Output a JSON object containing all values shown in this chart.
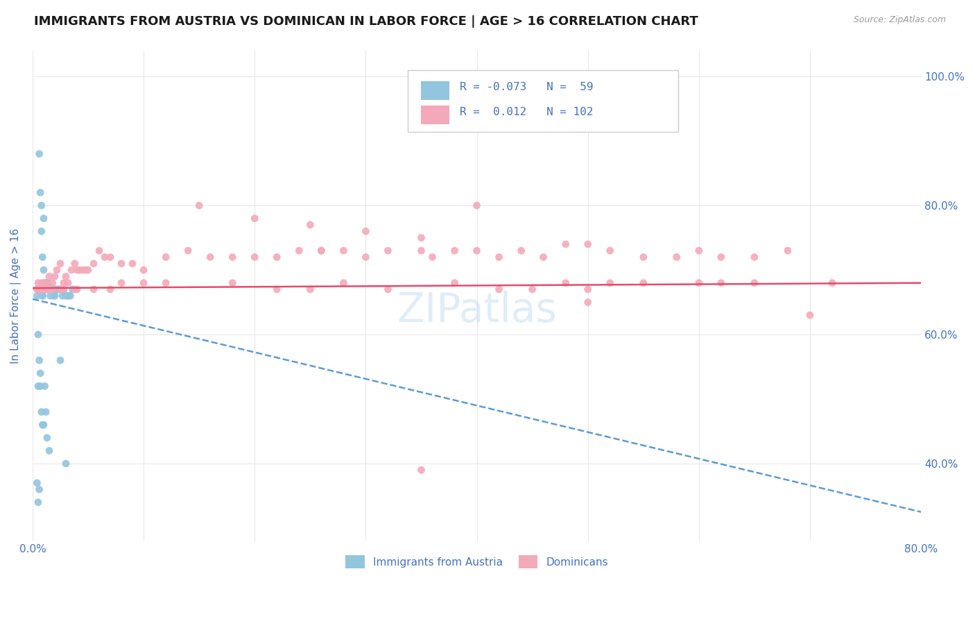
{
  "title": "IMMIGRANTS FROM AUSTRIA VS DOMINICAN IN LABOR FORCE | AGE > 16 CORRELATION CHART",
  "source": "Source: ZipAtlas.com",
  "ylabel": "In Labor Force | Age > 16",
  "xlim": [
    0.0,
    0.8
  ],
  "ylim": [
    0.28,
    1.04
  ],
  "xtick_vals": [
    0.0,
    0.1,
    0.2,
    0.3,
    0.4,
    0.5,
    0.6,
    0.7,
    0.8
  ],
  "xtick_labels": [
    "0.0%",
    "",
    "",
    "",
    "",
    "",
    "",
    "",
    "80.0%"
  ],
  "ytick_vals": [
    0.4,
    0.6,
    0.8,
    1.0
  ],
  "ytick_labels": [
    "40.0%",
    "60.0%",
    "80.0%",
    "100.0%"
  ],
  "legend_r1": "-0.073",
  "legend_n1": "59",
  "legend_r2": "0.012",
  "legend_n2": "102",
  "austria_color": "#92C5DE",
  "dominican_color": "#F4A9B8",
  "austria_trend_color": "#5B9BD5",
  "dominican_trend_color": "#E8496A",
  "watermark": "ZIPatlas",
  "austria_trend_x0": 0.0,
  "austria_trend_y0": 0.655,
  "austria_trend_x1": 0.8,
  "austria_trend_y1": 0.325,
  "dominican_trend_x0": 0.0,
  "dominican_trend_y0": 0.672,
  "dominican_trend_x1": 0.8,
  "dominican_trend_y1": 0.68,
  "austria_x": [
    0.004,
    0.005,
    0.006,
    0.007,
    0.008,
    0.009,
    0.01,
    0.01,
    0.011,
    0.012,
    0.013,
    0.014,
    0.015,
    0.016,
    0.017,
    0.018,
    0.019,
    0.02,
    0.021,
    0.022,
    0.023,
    0.024,
    0.025,
    0.026,
    0.027,
    0.028,
    0.03,
    0.032,
    0.034,
    0.036,
    0.005,
    0.006,
    0.007,
    0.008,
    0.009,
    0.01,
    0.011,
    0.012,
    0.013,
    0.015,
    0.006,
    0.007,
    0.008,
    0.009,
    0.01,
    0.011,
    0.012,
    0.013,
    0.014,
    0.016,
    0.018,
    0.02,
    0.004,
    0.005,
    0.006,
    0.007,
    0.009,
    0.03,
    0.025
  ],
  "austria_y": [
    0.66,
    0.52,
    0.67,
    0.67,
    0.8,
    0.66,
    0.67,
    0.78,
    0.67,
    0.67,
    0.67,
    0.67,
    0.67,
    0.66,
    0.67,
    0.67,
    0.66,
    0.66,
    0.67,
    0.67,
    0.67,
    0.67,
    0.67,
    0.67,
    0.66,
    0.67,
    0.66,
    0.66,
    0.66,
    0.67,
    0.6,
    0.56,
    0.52,
    0.48,
    0.46,
    0.46,
    0.52,
    0.48,
    0.44,
    0.42,
    0.88,
    0.82,
    0.76,
    0.72,
    0.7,
    0.68,
    0.68,
    0.68,
    0.68,
    0.67,
    0.67,
    0.67,
    0.37,
    0.34,
    0.36,
    0.54,
    0.66,
    0.4,
    0.56
  ],
  "dominican_x": [
    0.005,
    0.008,
    0.01,
    0.012,
    0.015,
    0.018,
    0.02,
    0.022,
    0.025,
    0.028,
    0.03,
    0.032,
    0.035,
    0.038,
    0.04,
    0.042,
    0.045,
    0.048,
    0.05,
    0.055,
    0.06,
    0.065,
    0.07,
    0.08,
    0.09,
    0.1,
    0.12,
    0.14,
    0.16,
    0.18,
    0.2,
    0.22,
    0.24,
    0.26,
    0.28,
    0.3,
    0.32,
    0.35,
    0.38,
    0.4,
    0.42,
    0.44,
    0.46,
    0.48,
    0.5,
    0.52,
    0.55,
    0.58,
    0.6,
    0.62,
    0.65,
    0.68,
    0.7,
    0.5,
    0.4,
    0.35,
    0.3,
    0.25,
    0.2,
    0.15,
    0.1,
    0.08,
    0.055,
    0.038,
    0.028,
    0.018,
    0.012,
    0.008,
    0.006,
    0.6,
    0.5,
    0.45,
    0.55,
    0.65,
    0.48,
    0.38,
    0.28,
    0.18,
    0.12,
    0.07,
    0.04,
    0.025,
    0.015,
    0.009,
    0.007,
    0.005,
    0.62,
    0.52,
    0.42,
    0.32,
    0.22,
    0.72,
    0.35,
    0.25,
    0.016,
    0.013,
    0.01,
    0.008,
    0.006,
    0.004,
    0.26,
    0.36
  ],
  "dominican_y": [
    0.68,
    0.68,
    0.68,
    0.68,
    0.69,
    0.68,
    0.69,
    0.7,
    0.71,
    0.68,
    0.69,
    0.68,
    0.7,
    0.71,
    0.7,
    0.7,
    0.7,
    0.7,
    0.7,
    0.71,
    0.73,
    0.72,
    0.72,
    0.71,
    0.71,
    0.7,
    0.72,
    0.73,
    0.72,
    0.72,
    0.72,
    0.72,
    0.73,
    0.73,
    0.73,
    0.72,
    0.73,
    0.73,
    0.73,
    0.73,
    0.72,
    0.73,
    0.72,
    0.74,
    0.74,
    0.73,
    0.72,
    0.72,
    0.73,
    0.72,
    0.72,
    0.73,
    0.63,
    0.65,
    0.8,
    0.75,
    0.76,
    0.77,
    0.78,
    0.8,
    0.68,
    0.68,
    0.67,
    0.67,
    0.67,
    0.67,
    0.67,
    0.67,
    0.67,
    0.68,
    0.67,
    0.67,
    0.68,
    0.68,
    0.68,
    0.68,
    0.68,
    0.68,
    0.68,
    0.67,
    0.67,
    0.67,
    0.67,
    0.67,
    0.67,
    0.67,
    0.68,
    0.68,
    0.67,
    0.67,
    0.67,
    0.68,
    0.39,
    0.67,
    0.67,
    0.67,
    0.67,
    0.67,
    0.67,
    0.67,
    0.73,
    0.72
  ]
}
